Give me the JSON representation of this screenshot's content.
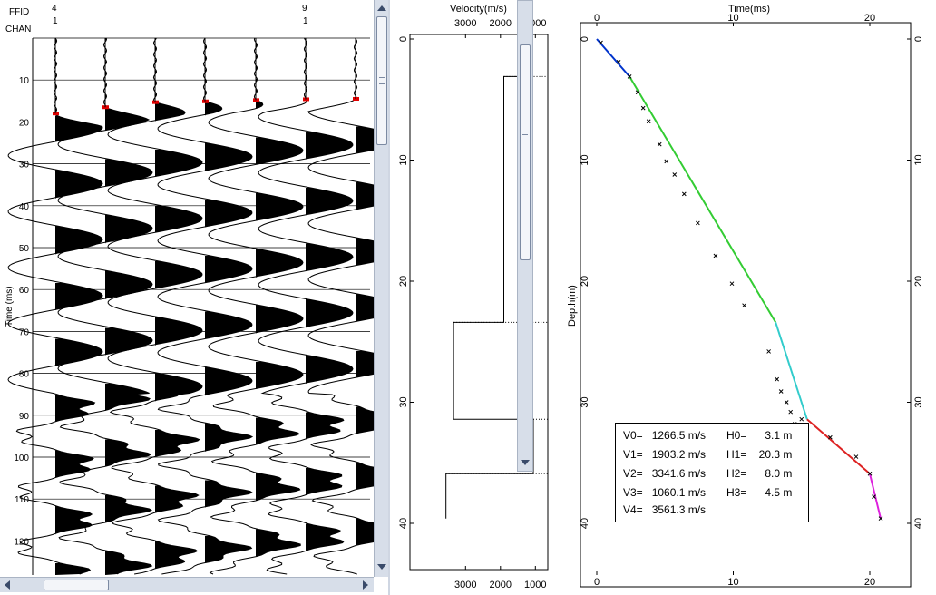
{
  "seismic": {
    "ffid_label": "FFID",
    "chan_label": "CHAN",
    "ffid_values": [
      "4",
      "9"
    ],
    "chan_values": [
      "1",
      "1"
    ],
    "y_axis_label": "Time (ms)",
    "y_ticks": [
      "10",
      "20",
      "30",
      "40",
      "50",
      "60",
      "70",
      "80",
      "90",
      "100",
      "110",
      "120"
    ],
    "pick_color": "#e00000"
  },
  "velocity": {
    "axis_title": "Velocity(m/s)",
    "top_ticks": [
      "3000",
      "2000",
      "1000"
    ],
    "bottom_ticks": [
      "3000",
      "2000",
      "1000"
    ],
    "depth_ticks": [
      "0",
      "10",
      "20",
      "30",
      "40"
    ]
  },
  "time_depth": {
    "x_axis_title": "Time(ms)",
    "y_axis_title": "Depth(m)",
    "x_ticks": [
      "0",
      "10",
      "20"
    ],
    "y_ticks": [
      "0",
      "10",
      "20",
      "30",
      "40"
    ],
    "layer_colors": [
      "#0033cc",
      "#33cc33",
      "#33cccc",
      "#dd2222",
      "#dd22dd"
    ],
    "legend": [
      {
        "v": "V0=   1266.5 m/s",
        "h": "H0=      3.1 m"
      },
      {
        "v": "V1=   1903.2 m/s",
        "h": "H1=    20.3 m"
      },
      {
        "v": "V2=   3341.6 m/s",
        "h": "H2=      8.0 m"
      },
      {
        "v": "V3=   1060.1 m/s",
        "h": "H3=      4.5 m"
      },
      {
        "v": "V4=   3561.3 m/s",
        "h": ""
      }
    ]
  },
  "chart_data": {
    "type": "line",
    "xlabel": "Time(ms)",
    "ylabel": "Depth(m)",
    "xlim": [
      0,
      23
    ],
    "ylim": [
      44,
      0
    ],
    "series": [
      {
        "x": [
          0,
          2.4
        ],
        "y": [
          0,
          3.1
        ]
      },
      {
        "x": [
          2.4,
          13.1
        ],
        "y": [
          3.1,
          23.4
        ]
      },
      {
        "x": [
          13.1,
          15.4
        ],
        "y": [
          23.4,
          31.4
        ]
      },
      {
        "x": [
          15.4,
          20.0
        ],
        "y": [
          31.4,
          35.9
        ]
      },
      {
        "x": [
          20.0,
          20.8
        ],
        "y": [
          35.9,
          39.6
        ]
      }
    ],
    "points": {
      "x": [
        0.3,
        1.6,
        2.4,
        3.0,
        3.4,
        3.8,
        4.6,
        5.1,
        5.7,
        6.4,
        7.4,
        8.7,
        9.9,
        10.8,
        12.6,
        13.2,
        13.5,
        13.9,
        14.2,
        14.5,
        15.0,
        15.4,
        17.1,
        19.0,
        20.0,
        20.3,
        20.8
      ],
      "y": [
        0.3,
        1.9,
        3.1,
        4.4,
        5.7,
        6.8,
        8.7,
        10.1,
        11.2,
        12.8,
        15.2,
        17.9,
        20.2,
        22.0,
        25.8,
        28.1,
        29.1,
        30.0,
        30.8,
        31.8,
        31.4,
        32.1,
        32.9,
        34.5,
        35.9,
        37.8,
        39.6
      ]
    }
  }
}
